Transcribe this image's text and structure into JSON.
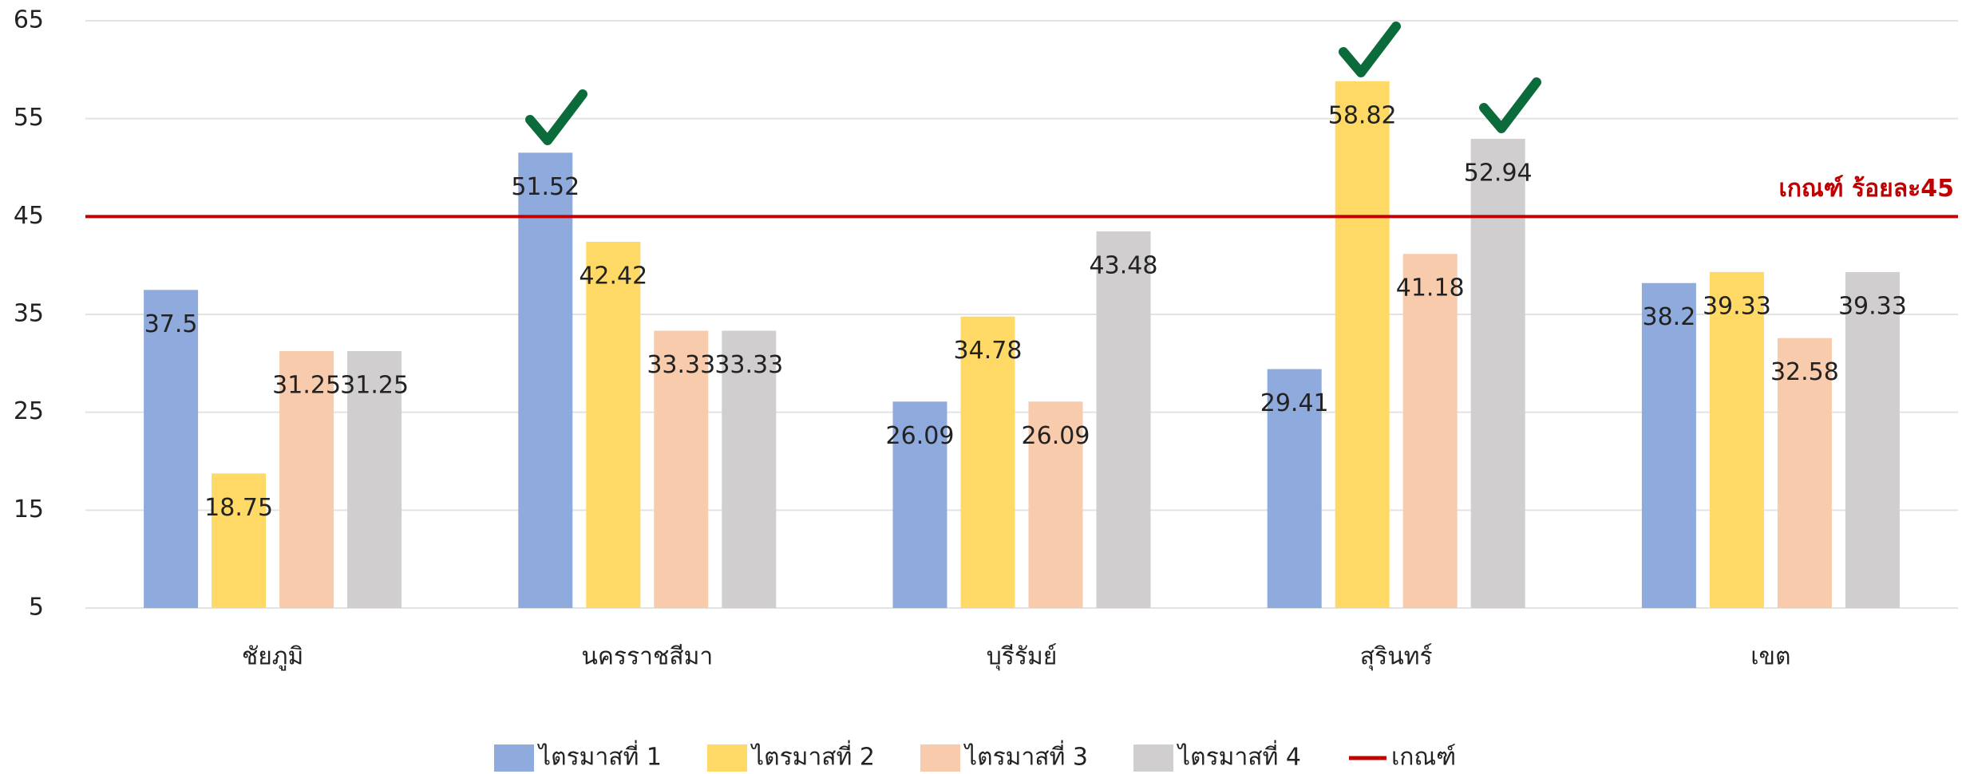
{
  "chart_data": {
    "type": "bar",
    "categories": [
      "ชัยภูมิ",
      "นครราชสีมา",
      "บุรีรัมย์",
      "สุรินทร์",
      "เขต"
    ],
    "series": [
      {
        "name": "ไตรมาสที่ 1",
        "color": "#8faadc",
        "values": [
          37.5,
          51.52,
          26.09,
          29.41,
          38.2
        ]
      },
      {
        "name": "ไตรมาสที่ 2",
        "color": "#ffd966",
        "values": [
          18.75,
          42.42,
          34.78,
          58.82,
          39.33
        ]
      },
      {
        "name": "ไตรมาสที่ 3",
        "color": "#f8cbad",
        "values": [
          31.25,
          33.33,
          26.09,
          41.18,
          32.58
        ]
      },
      {
        "name": "ไตรมาสที่ 4",
        "color": "#d0cece",
        "values": [
          31.25,
          33.33,
          43.48,
          52.94,
          39.33
        ]
      }
    ],
    "threshold": {
      "name": "เกณฑ์",
      "value": 45,
      "label": "เกณฑ์ ร้อยละ45",
      "color": "#c00000"
    },
    "ylim": [
      5,
      65
    ],
    "yticks": [
      5,
      15,
      25,
      35,
      45,
      55,
      65
    ],
    "grid": true,
    "legend": "bottom"
  }
}
